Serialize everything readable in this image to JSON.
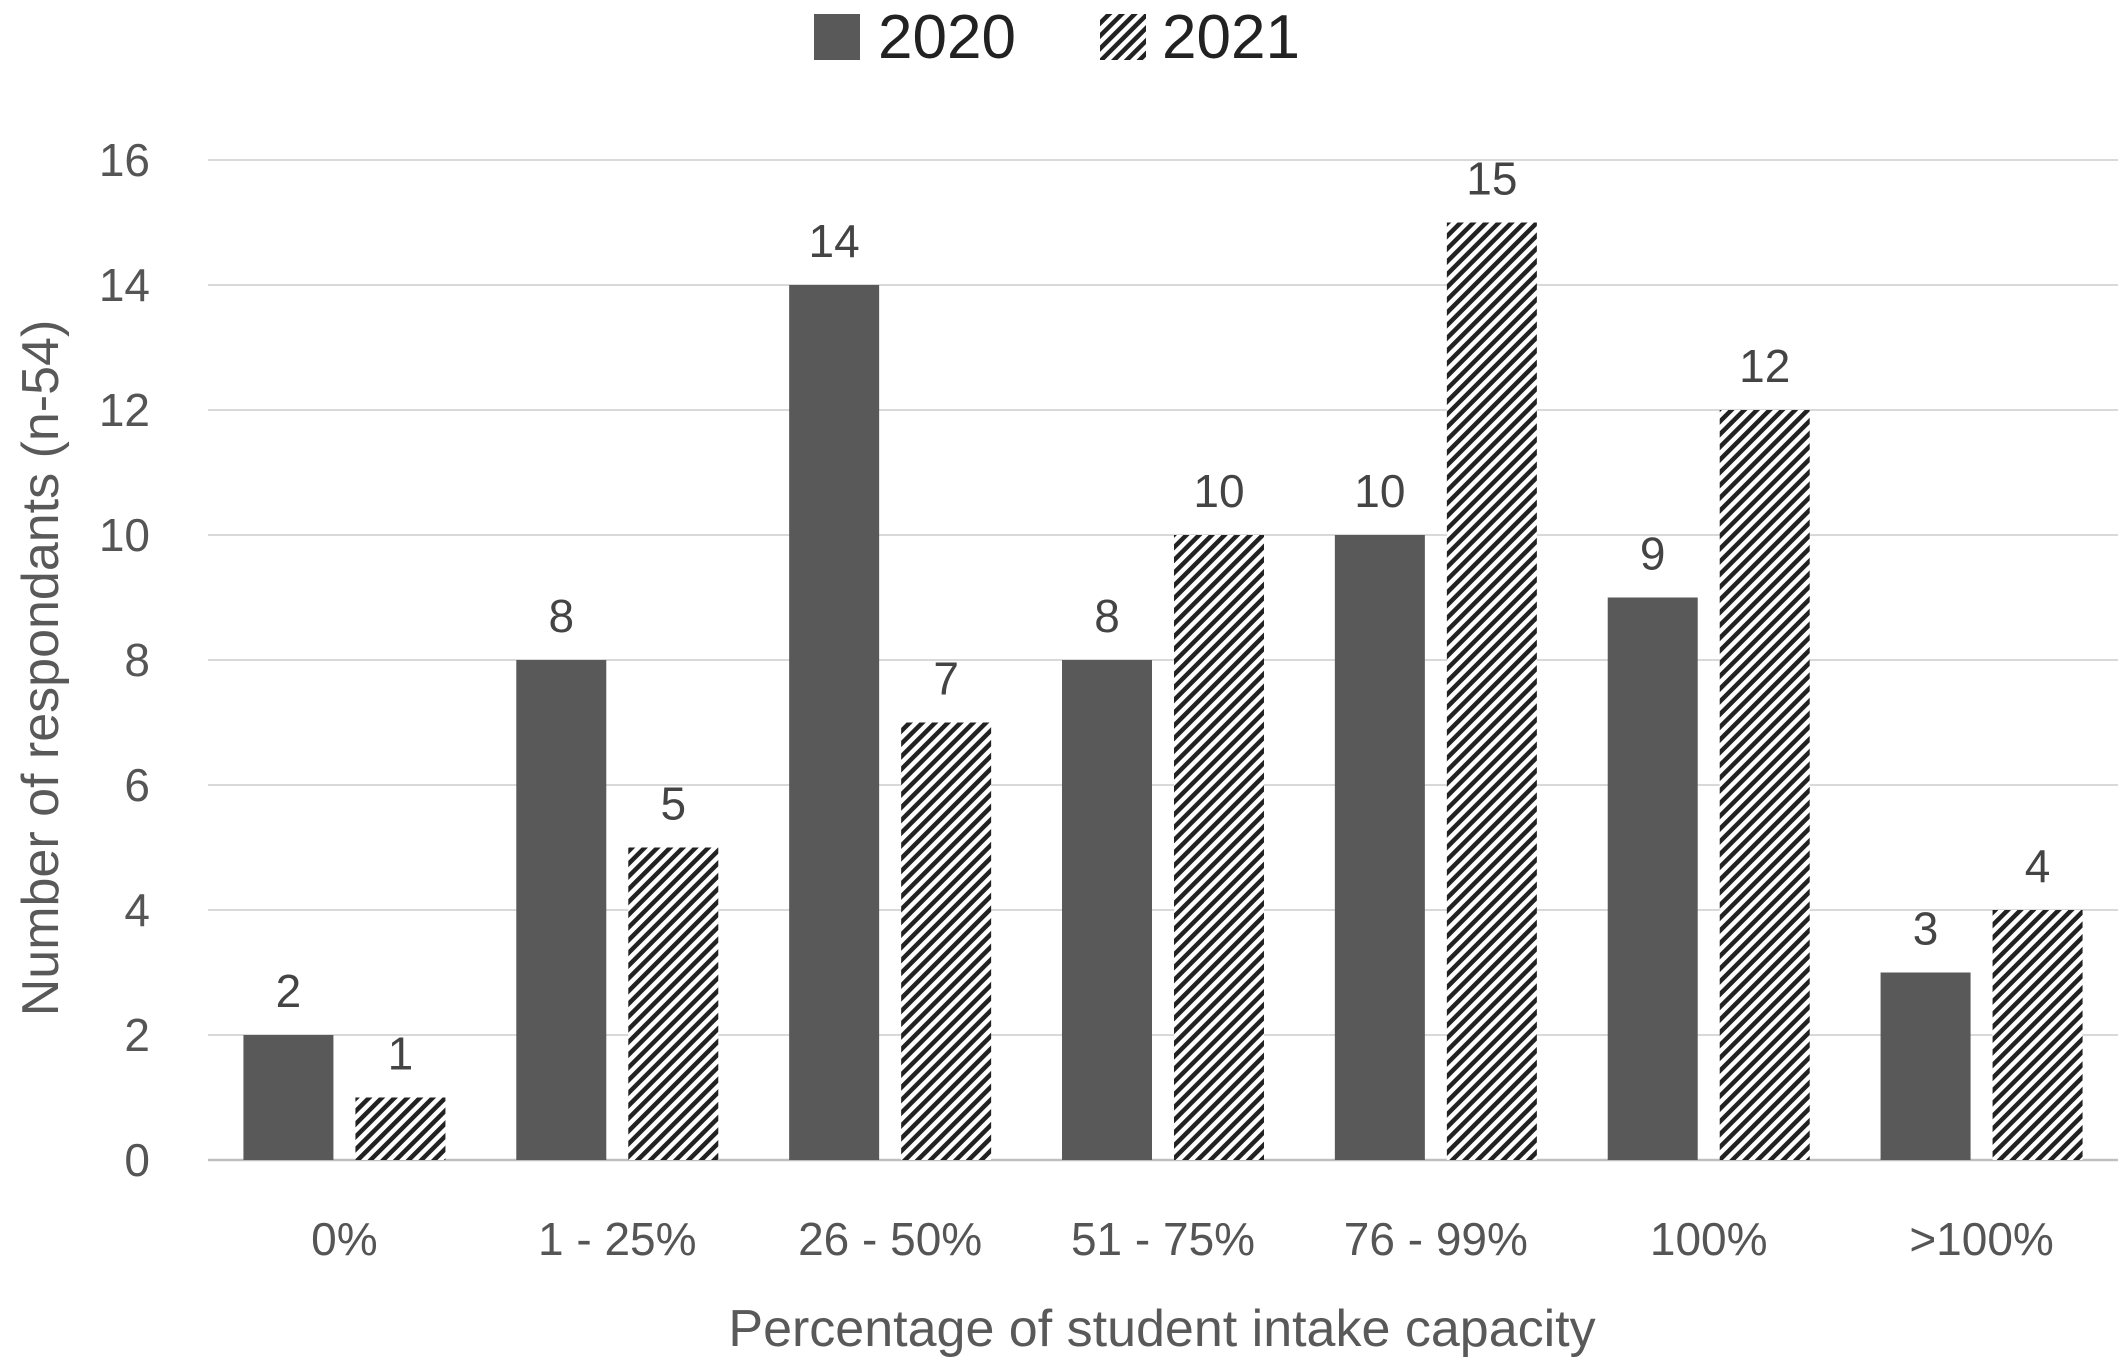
{
  "chart_data": {
    "type": "bar",
    "title": "",
    "xlabel": "Percentage of student intake capacity",
    "ylabel": "Number of respondants (n-54)",
    "ylim": [
      0,
      16
    ],
    "yticks": [
      0,
      2,
      4,
      6,
      8,
      10,
      12,
      14,
      16
    ],
    "grid": true,
    "legend_position": "top-center",
    "categories": [
      "0%",
      "1 - 25%",
      "26 - 50%",
      "51 - 75%",
      "76 - 99%",
      "100%",
      ">100%"
    ],
    "series": [
      {
        "name": "2020",
        "values": [
          2,
          8,
          14,
          8,
          10,
          9,
          3
        ],
        "color": "#595959",
        "pattern": "solid"
      },
      {
        "name": "2021",
        "values": [
          1,
          5,
          7,
          10,
          15,
          12,
          4
        ],
        "color": "#222222",
        "pattern": "diagonal-hatch"
      }
    ],
    "data_labels": true
  }
}
